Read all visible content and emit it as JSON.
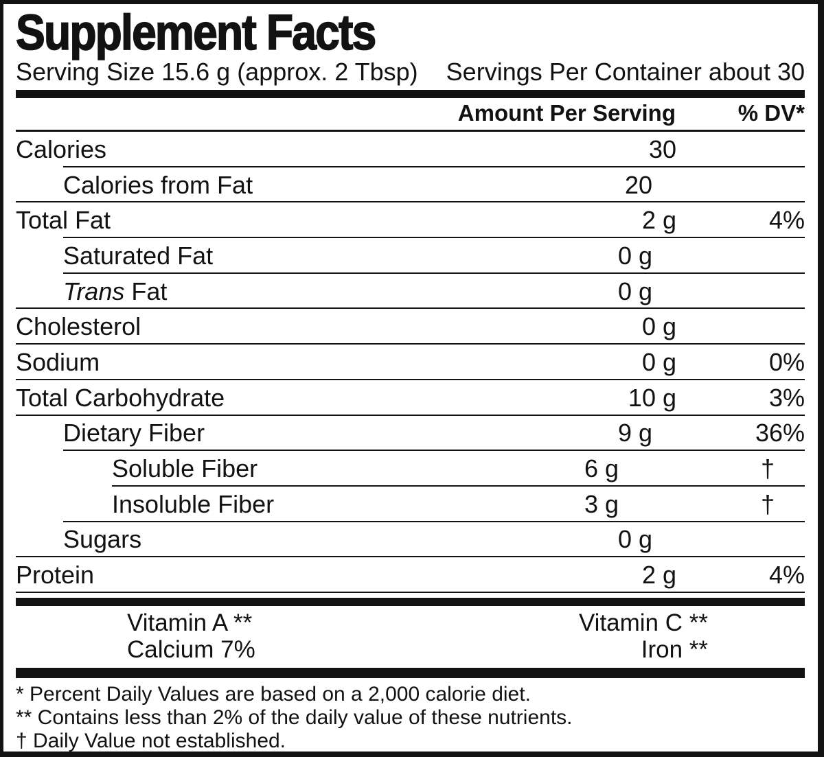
{
  "title": "Supplement Facts",
  "serving": {
    "size_label": "Serving Size 15.6 g (approx. 2 Tbsp)",
    "per_container_label": "Servings Per Container about 30"
  },
  "table": {
    "amount_header": "Amount Per Serving",
    "dv_header": "% DV*",
    "rows": [
      {
        "label": "Calories",
        "amount": "30",
        "dv": "",
        "level": 0,
        "sep": "indent1"
      },
      {
        "label": "Calories from Fat",
        "amount": "20",
        "dv": "",
        "level": 1,
        "sep": "full"
      },
      {
        "label": "Total Fat",
        "amount": "2 g",
        "dv": "4%",
        "level": 0,
        "sep": "indent1"
      },
      {
        "label": "Saturated Fat",
        "amount": "0 g",
        "dv": "",
        "level": 1,
        "sep": "indent1"
      },
      {
        "label": "Trans Fat",
        "italic_prefix": "Trans",
        "amount": "0 g",
        "dv": "",
        "level": 1,
        "sep": "full"
      },
      {
        "label": "Cholesterol",
        "amount": "0 g",
        "dv": "",
        "level": 0,
        "sep": "full"
      },
      {
        "label": "Sodium",
        "amount": "0 g",
        "dv": "0%",
        "level": 0,
        "sep": "full"
      },
      {
        "label": "Total Carbohydrate",
        "amount": "10 g",
        "dv": "3%",
        "level": 0,
        "sep": "full"
      },
      {
        "label": "Dietary Fiber",
        "amount": "9 g",
        "dv": "36%",
        "level": 1,
        "sep": "indent1"
      },
      {
        "label": "Soluble Fiber",
        "amount": "6 g",
        "dv": "†",
        "dv_centered": true,
        "level": 2,
        "sep": "indent2"
      },
      {
        "label": "Insoluble Fiber",
        "amount": "3 g",
        "dv": "†",
        "dv_centered": true,
        "level": 2,
        "sep": "indent1"
      },
      {
        "label": "Sugars",
        "amount": "0 g",
        "dv": "",
        "level": 1,
        "sep": "full"
      },
      {
        "label": "Protein",
        "amount": "2 g",
        "dv": "4%",
        "level": 0,
        "sep": "full"
      }
    ]
  },
  "micronutrients": [
    {
      "left": "Vitamin A **",
      "right": "Vitamin C **"
    },
    {
      "left": "Calcium 7%",
      "right": "Iron **"
    }
  ],
  "footnotes": [
    "* Percent Daily Values are based on a 2,000 calorie diet.",
    "** Contains less than 2% of the daily value of these nutrients.",
    "† Daily Value not established."
  ],
  "colors": {
    "ink": "#121212",
    "background": "#ffffff"
  }
}
